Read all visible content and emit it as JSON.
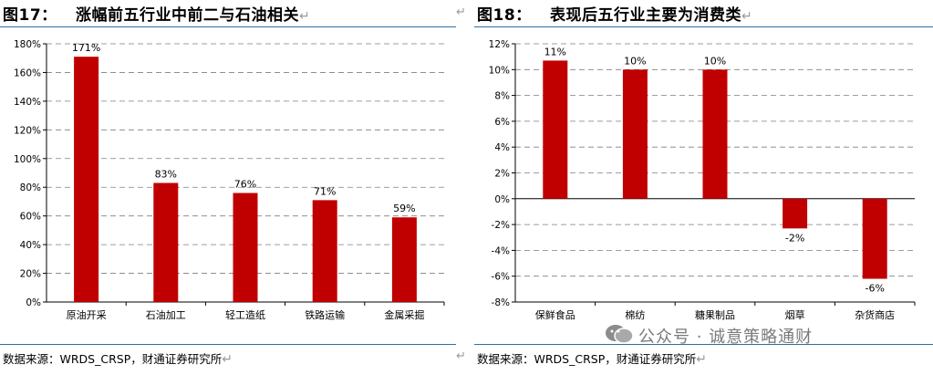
{
  "left": {
    "figure_no": "图17：",
    "title": "涨幅前五行业中前二与石油相关",
    "source": "数据来源：WRDS_CRSP，财通证券研究所"
  },
  "right": {
    "figure_no": "图18：",
    "title": "表现后五行业主要为消费类",
    "source": "数据来源：WRDS_CRSP，财通证券研究所"
  },
  "return_mark": "↵",
  "watermark": "公众号 · 诚意策略通财",
  "colors": {
    "bar": "#c00000",
    "rule": "#2e6fa3",
    "grid": "#7f7f7f"
  },
  "chart_data": [
    {
      "type": "bar",
      "title": "涨幅前五行业中前二与石油相关",
      "categories": [
        "原油开采",
        "石油加工",
        "轻工造纸",
        "铁路运输",
        "金属采掘"
      ],
      "values": [
        171,
        83,
        76,
        71,
        59
      ],
      "data_labels": [
        "171%",
        "83%",
        "76%",
        "71%",
        "59%"
      ],
      "unit": "%",
      "ylim": [
        0,
        180
      ],
      "yticks": [
        0,
        20,
        40,
        60,
        80,
        100,
        120,
        140,
        160,
        180
      ],
      "ytick_labels": [
        "0%",
        "20%",
        "40%",
        "60%",
        "80%",
        "100%",
        "120%",
        "140%",
        "160%",
        "180%"
      ],
      "grid": true
    },
    {
      "type": "bar",
      "title": "表现后五行业主要为消费类",
      "categories": [
        "保鲜食品",
        "棉纺",
        "糖果制品",
        "烟草",
        "杂货商店"
      ],
      "values": [
        10.7,
        10,
        10,
        -2.3,
        -6.2
      ],
      "data_labels": [
        "11%",
        "10%",
        "10%",
        "-2%",
        "-6%"
      ],
      "unit": "%",
      "ylim": [
        -8,
        12
      ],
      "yticks": [
        -8,
        -6,
        -4,
        -2,
        0,
        2,
        4,
        6,
        8,
        10,
        12
      ],
      "ytick_labels": [
        "-8%",
        "-6%",
        "-4%",
        "-2%",
        "0%",
        "2%",
        "4%",
        "6%",
        "8%",
        "10%",
        "12%"
      ],
      "grid": true
    }
  ]
}
